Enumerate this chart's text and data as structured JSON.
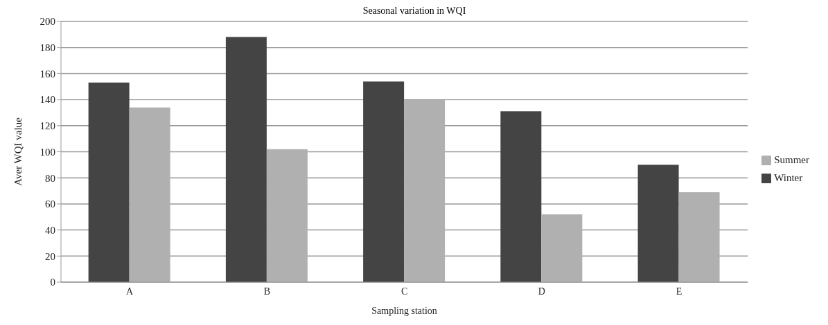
{
  "chart_data": {
    "type": "bar",
    "title": "Seasonal variation in WQI",
    "xlabel": "Sampling station",
    "ylabel": "Aver WQI value",
    "categories": [
      "A",
      "B",
      "C",
      "D",
      "E"
    ],
    "series": [
      {
        "name": "Winter",
        "color": "#444444",
        "values": [
          153,
          188,
          154,
          131,
          90
        ]
      },
      {
        "name": "Summer",
        "color": "#b0b0b0",
        "values": [
          134,
          102,
          140,
          52,
          69
        ]
      }
    ],
    "ylim": [
      0,
      200
    ],
    "yticks": [
      0,
      20,
      40,
      60,
      80,
      100,
      120,
      140,
      160,
      180,
      200
    ],
    "grid": "y",
    "legend": "right"
  }
}
